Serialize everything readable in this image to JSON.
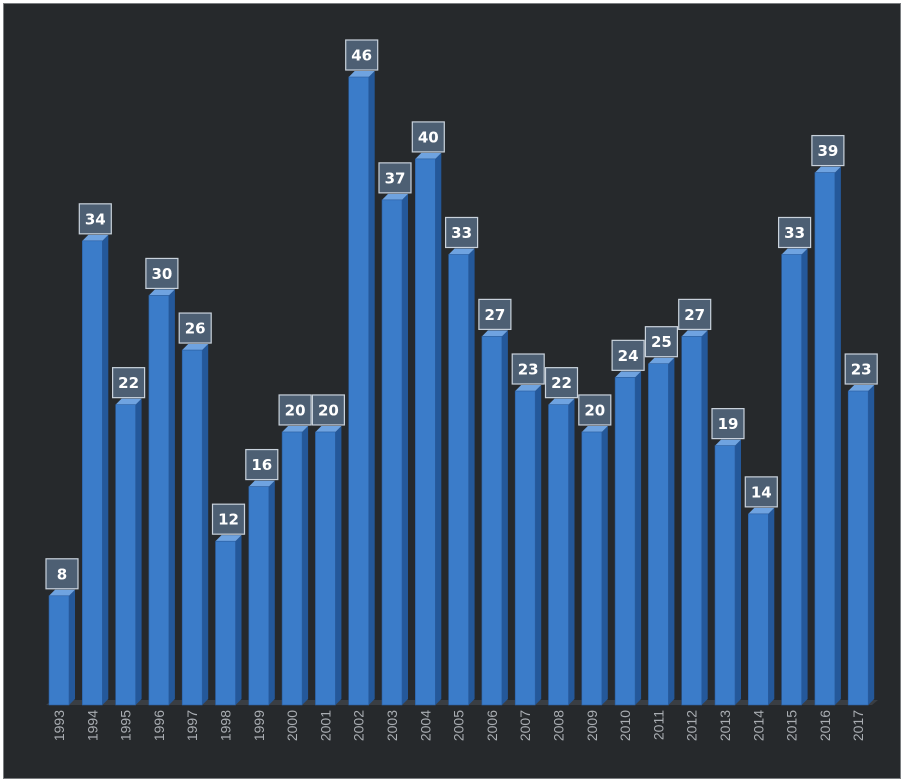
{
  "chart_data": {
    "type": "bar",
    "title": "",
    "xlabel": "",
    "ylabel": "",
    "categories": [
      "1993",
      "1994",
      "1995",
      "1996",
      "1997",
      "1998",
      "1999",
      "2000",
      "2001",
      "2002",
      "2003",
      "2004",
      "2005",
      "2006",
      "2007",
      "2008",
      "2009",
      "2010",
      "2011",
      "2012",
      "2013",
      "2014",
      "2015",
      "2016",
      "2017"
    ],
    "values": [
      8,
      34,
      22,
      30,
      26,
      12,
      16,
      20,
      20,
      46,
      37,
      40,
      33,
      27,
      23,
      22,
      20,
      24,
      25,
      27,
      19,
      14,
      33,
      39,
      23
    ],
    "ylim": [
      0,
      46
    ],
    "grid": false,
    "legend": "none",
    "data_labels": true,
    "colors": {
      "background": "#26292c",
      "bar_front": "#3b7cc9",
      "bar_side": "#24589a",
      "bar_top": "#6fa3e0",
      "label_box": "#4d5f73",
      "label_border": "#c9d2dc",
      "label_text": "#ffffff",
      "tick_text": "#a9adb2"
    }
  }
}
